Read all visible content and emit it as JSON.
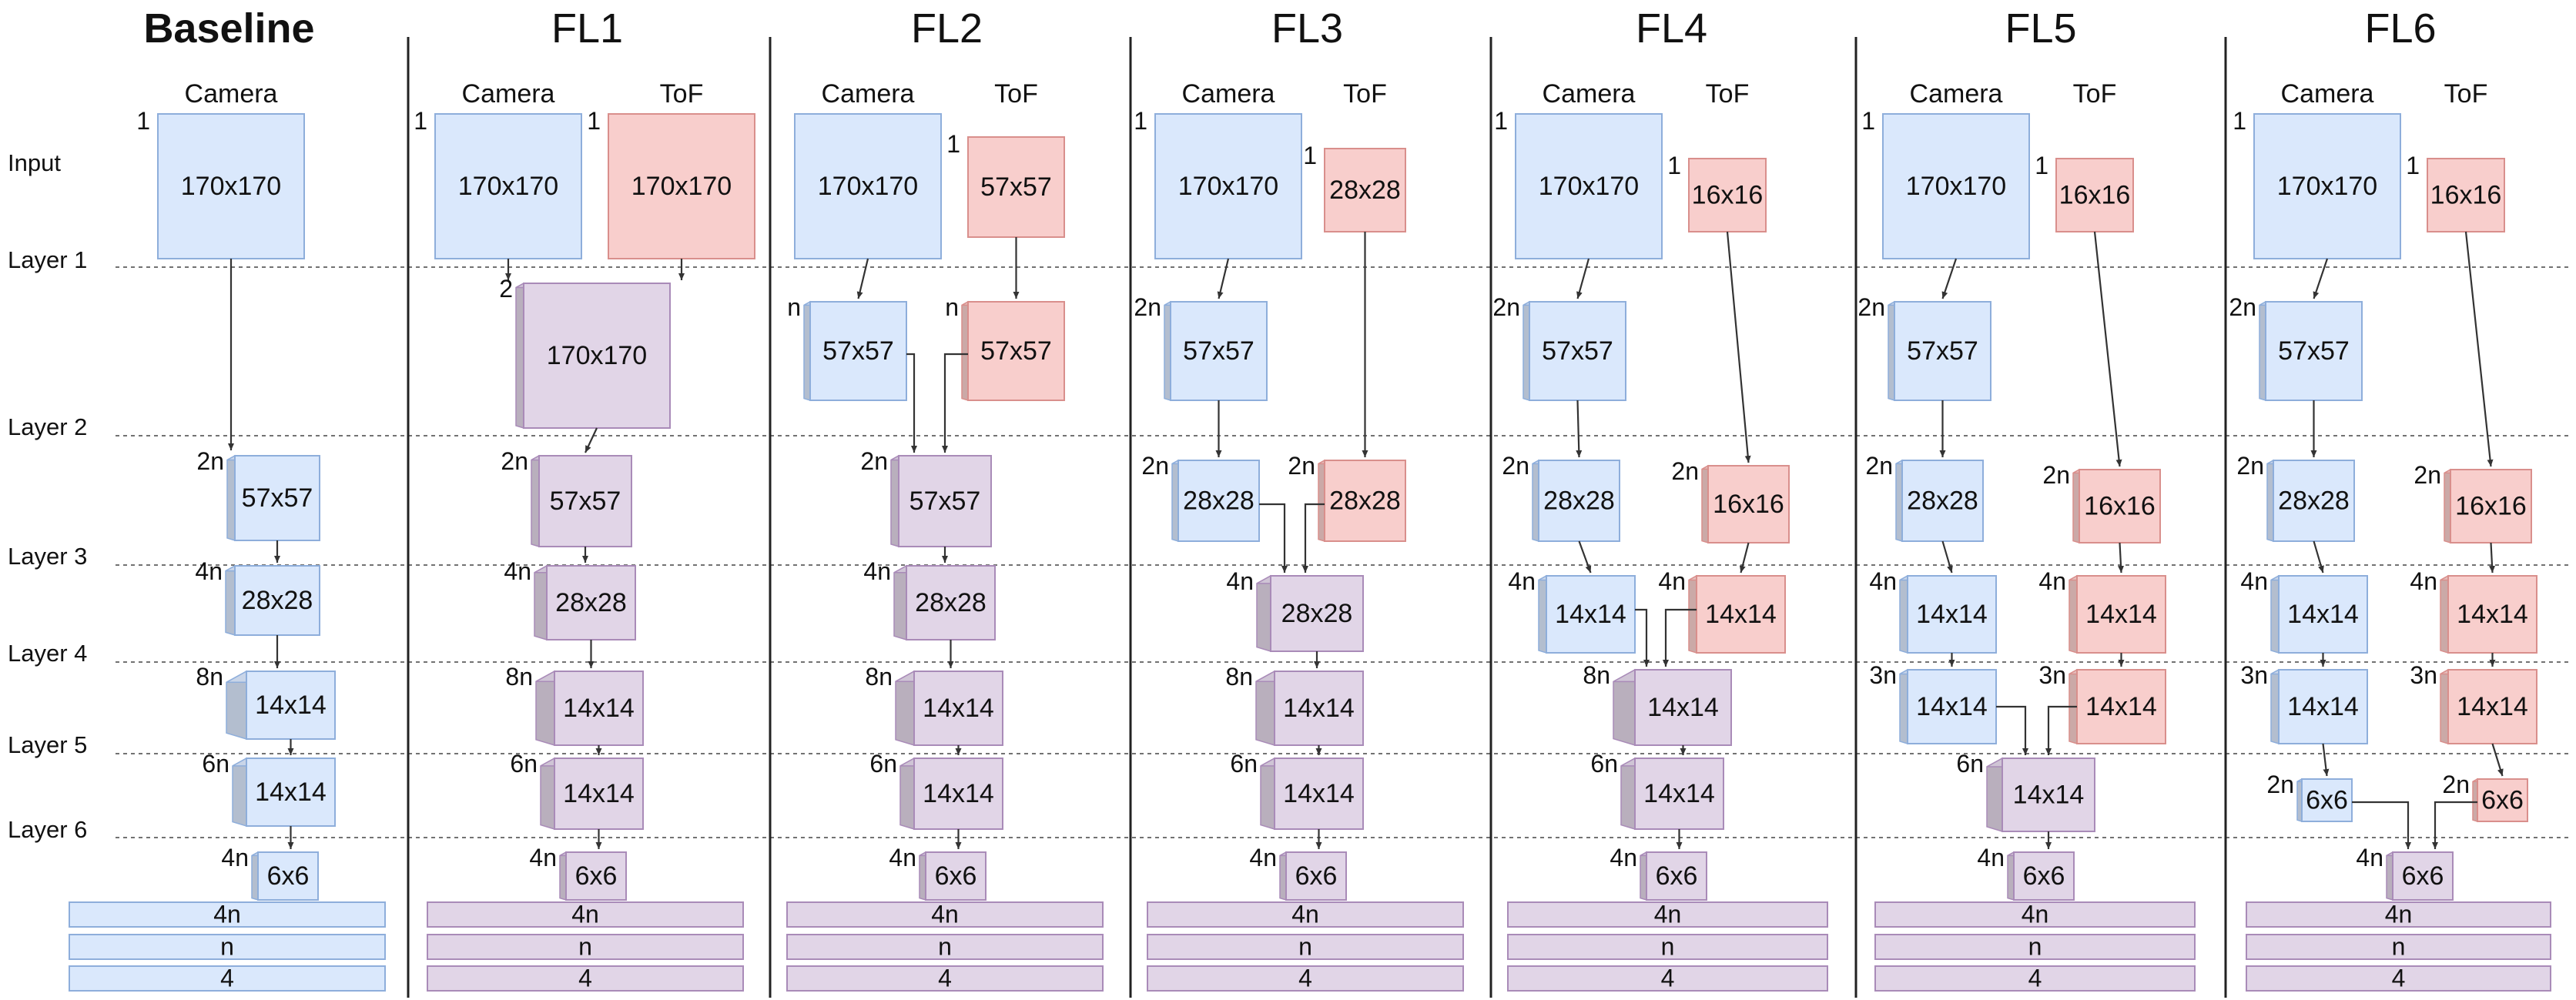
{
  "colors": {
    "camera_fill": "#dae8fc",
    "camera_stroke": "#8eaedb",
    "tof_fill": "#f8cecc",
    "tof_stroke": "#d98f8c",
    "fused_fill": "#e1d5e7",
    "fused_stroke": "#a98bb8",
    "line": "#333333",
    "separator": "#222222"
  },
  "row_labels": [
    "Input",
    "Layer 1",
    "Layer 2",
    "Layer 3",
    "Layer 4",
    "Layer 5",
    "Layer 6"
  ],
  "fc_labels": [
    "4n",
    "n",
    "4"
  ],
  "columns": [
    {
      "title": "Baseline",
      "bold": true,
      "streams": [
        "Camera"
      ],
      "inputs": [
        {
          "mult": "1",
          "dim": "170x170"
        }
      ],
      "layers": [
        {
          "kind": "camera",
          "mult": "2n",
          "dim": "57x57"
        },
        {
          "kind": "camera",
          "mult": "4n",
          "dim": "28x28"
        },
        {
          "kind": "camera",
          "mult": "8n",
          "dim": "14x14"
        },
        {
          "kind": "camera",
          "mult": "6n",
          "dim": "14x14"
        },
        {
          "kind": "camera",
          "mult": "4n",
          "dim": "6x6"
        }
      ]
    },
    {
      "title": "FL1",
      "bold": false,
      "streams": [
        "Camera",
        "ToF"
      ],
      "inputs": [
        {
          "mult": "1",
          "dim": "170x170"
        },
        {
          "mult": "1",
          "dim": "170x170"
        }
      ],
      "layers": [
        {
          "kind": "fused",
          "mult": "2",
          "dim": "170x170"
        },
        {
          "kind": "fused",
          "mult": "2n",
          "dim": "57x57"
        },
        {
          "kind": "fused",
          "mult": "4n",
          "dim": "28x28"
        },
        {
          "kind": "fused",
          "mult": "8n",
          "dim": "14x14"
        },
        {
          "kind": "fused",
          "mult": "6n",
          "dim": "14x14"
        },
        {
          "kind": "fused",
          "mult": "4n",
          "dim": "6x6"
        }
      ]
    },
    {
      "title": "FL2",
      "bold": false,
      "streams": [
        "Camera",
        "ToF"
      ],
      "inputs": [
        {
          "mult": "",
          "dim": "170x170"
        },
        {
          "mult": "1",
          "dim": "57x57"
        }
      ],
      "layers": [
        {
          "kind": "camera",
          "mult": "n",
          "dim": "57x57"
        },
        {
          "kind": "tof",
          "mult": "n",
          "dim": "57x57"
        },
        {
          "kind": "fused",
          "mult": "2n",
          "dim": "57x57"
        },
        {
          "kind": "fused",
          "mult": "4n",
          "dim": "28x28"
        },
        {
          "kind": "fused",
          "mult": "8n",
          "dim": "14x14"
        },
        {
          "kind": "fused",
          "mult": "6n",
          "dim": "14x14"
        },
        {
          "kind": "fused",
          "mult": "4n",
          "dim": "6x6"
        }
      ]
    },
    {
      "title": "FL3",
      "bold": false,
      "streams": [
        "Camera",
        "ToF"
      ],
      "inputs": [
        {
          "mult": "1",
          "dim": "170x170"
        },
        {
          "mult": "1",
          "dim": "28x28"
        }
      ],
      "layers": [
        {
          "kind": "camera",
          "mult": "2n",
          "dim": "57x57"
        },
        {
          "kind": "camera",
          "mult": "2n",
          "dim": "28x28"
        },
        {
          "kind": "tof",
          "mult": "2n",
          "dim": "28x28"
        },
        {
          "kind": "fused",
          "mult": "4n",
          "dim": "28x28"
        },
        {
          "kind": "fused",
          "mult": "8n",
          "dim": "14x14"
        },
        {
          "kind": "fused",
          "mult": "6n",
          "dim": "14x14"
        },
        {
          "kind": "fused",
          "mult": "4n",
          "dim": "6x6"
        }
      ]
    },
    {
      "title": "FL4",
      "bold": false,
      "streams": [
        "Camera",
        "ToF"
      ],
      "inputs": [
        {
          "mult": "1",
          "dim": "170x170"
        },
        {
          "mult": "1",
          "dim": "16x16"
        }
      ],
      "layers": [
        {
          "kind": "camera",
          "mult": "2n",
          "dim": "57x57"
        },
        {
          "kind": "camera",
          "mult": "2n",
          "dim": "28x28"
        },
        {
          "kind": "tof",
          "mult": "2n",
          "dim": "16x16"
        },
        {
          "kind": "camera",
          "mult": "4n",
          "dim": "14x14"
        },
        {
          "kind": "tof",
          "mult": "4n",
          "dim": "14x14"
        },
        {
          "kind": "fused",
          "mult": "8n",
          "dim": "14x14"
        },
        {
          "kind": "fused",
          "mult": "6n",
          "dim": "14x14"
        },
        {
          "kind": "fused",
          "mult": "4n",
          "dim": "6x6"
        }
      ]
    },
    {
      "title": "FL5",
      "bold": false,
      "streams": [
        "Camera",
        "ToF"
      ],
      "inputs": [
        {
          "mult": "1",
          "dim": "170x170"
        },
        {
          "mult": "1",
          "dim": "16x16"
        }
      ],
      "layers": [
        {
          "kind": "camera",
          "mult": "2n",
          "dim": "57x57"
        },
        {
          "kind": "camera",
          "mult": "2n",
          "dim": "28x28"
        },
        {
          "kind": "tof",
          "mult": "2n",
          "dim": "16x16"
        },
        {
          "kind": "camera",
          "mult": "4n",
          "dim": "14x14"
        },
        {
          "kind": "tof",
          "mult": "4n",
          "dim": "14x14"
        },
        {
          "kind": "camera",
          "mult": "3n",
          "dim": "14x14"
        },
        {
          "kind": "tof",
          "mult": "3n",
          "dim": "14x14"
        },
        {
          "kind": "fused",
          "mult": "6n",
          "dim": "14x14"
        },
        {
          "kind": "fused",
          "mult": "4n",
          "dim": "6x6"
        }
      ]
    },
    {
      "title": "FL6",
      "bold": false,
      "streams": [
        "Camera",
        "ToF"
      ],
      "inputs": [
        {
          "mult": "1",
          "dim": "170x170"
        },
        {
          "mult": "1",
          "dim": "16x16"
        }
      ],
      "layers": [
        {
          "kind": "camera",
          "mult": "2n",
          "dim": "57x57"
        },
        {
          "kind": "camera",
          "mult": "2n",
          "dim": "28x28"
        },
        {
          "kind": "tof",
          "mult": "2n",
          "dim": "16x16"
        },
        {
          "kind": "camera",
          "mult": "4n",
          "dim": "14x14"
        },
        {
          "kind": "tof",
          "mult": "4n",
          "dim": "14x14"
        },
        {
          "kind": "camera",
          "mult": "3n",
          "dim": "14x14"
        },
        {
          "kind": "tof",
          "mult": "3n",
          "dim": "14x14"
        },
        {
          "kind": "camera",
          "mult": "2n",
          "dim": "6x6"
        },
        {
          "kind": "tof",
          "mult": "2n",
          "dim": "6x6"
        },
        {
          "kind": "fused",
          "mult": "4n",
          "dim": "6x6"
        }
      ]
    }
  ]
}
